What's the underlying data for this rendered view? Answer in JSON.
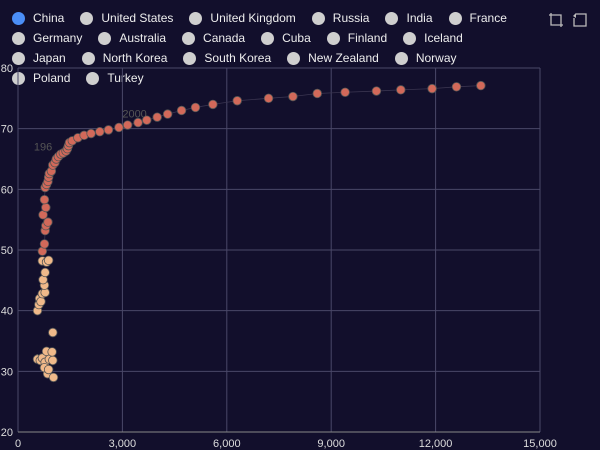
{
  "legend": {
    "active_color": "#4b8ef7",
    "inactive_color": "#cfcfcf",
    "items": [
      "China",
      "United States",
      "United Kingdom",
      "Russia",
      "India",
      "France",
      "Germany",
      "Australia",
      "Canada",
      "Cuba",
      "Finland",
      "Iceland",
      "Japan",
      "North Korea",
      "South Korea",
      "New Zealand",
      "Norway",
      "Poland",
      "Turkey"
    ]
  },
  "toolbox": [
    "zoom-icon",
    "restore-icon"
  ],
  "chart_data": {
    "type": "scatter",
    "xlim": [
      0,
      15000
    ],
    "ylim": [
      20,
      80
    ],
    "x_ticks": [
      0,
      3000,
      6000,
      9000,
      12000,
      15000
    ],
    "x_tick_labels": [
      "0",
      "3,000",
      "6,000",
      "9,000",
      "12,000",
      "15,000"
    ],
    "y_ticks": [
      20,
      30,
      40,
      50,
      60,
      70,
      80
    ],
    "y_tick_labels": [
      "20",
      "30",
      "40",
      "50",
      "60",
      "70",
      "80"
    ],
    "grid": true,
    "colors": {
      "light": "#f0b98a",
      "dark": "#d2695a",
      "stroke": "#555555",
      "grid": "#4a4868",
      "axis_text": "#dddddd",
      "annotation": "#555555"
    },
    "annotations": [
      {
        "text": "2000",
        "x": 3350,
        "y": 71.8
      },
      {
        "text": "196",
        "x": 720,
        "y": 66.4
      },
      {
        "text": "189",
        "x": 730,
        "y": 31.6
      }
    ],
    "series": [
      {
        "color": "light",
        "points": [
          [
            560,
            32
          ],
          [
            640,
            31.8
          ],
          [
            700,
            32.2
          ],
          [
            780,
            31.5
          ],
          [
            900,
            32
          ],
          [
            1000,
            31.8
          ],
          [
            820,
            33.3
          ],
          [
            980,
            33.2
          ],
          [
            850,
            29.6
          ],
          [
            1020,
            29
          ],
          [
            760,
            30.6
          ],
          [
            880,
            30.3
          ],
          [
            1000,
            36.4
          ],
          [
            560,
            40
          ],
          [
            600,
            41
          ],
          [
            620,
            42
          ],
          [
            660,
            41.5
          ],
          [
            700,
            42.8
          ],
          [
            780,
            43
          ],
          [
            760,
            44.2
          ],
          [
            720,
            45.1
          ],
          [
            780,
            46.3
          ],
          [
            700,
            48.2
          ],
          [
            820,
            48
          ],
          [
            880,
            48.3
          ]
        ]
      },
      {
        "color": "dark",
        "points": [
          [
            700,
            49.8
          ],
          [
            760,
            51
          ],
          [
            780,
            53.2
          ],
          [
            800,
            54
          ],
          [
            860,
            54.6
          ],
          [
            720,
            55.8
          ],
          [
            800,
            57
          ],
          [
            760,
            58.3
          ],
          [
            780,
            60.3
          ],
          [
            820,
            60.8
          ],
          [
            860,
            61.3
          ],
          [
            880,
            62
          ],
          [
            900,
            62.6
          ],
          [
            960,
            63
          ],
          [
            1000,
            64
          ],
          [
            1060,
            64.4
          ],
          [
            1100,
            65
          ],
          [
            1160,
            65.4
          ],
          [
            1230,
            65.8
          ],
          [
            1300,
            66
          ],
          [
            1380,
            66.3
          ],
          [
            1420,
            66.7
          ],
          [
            1450,
            67.2
          ],
          [
            1480,
            67.7
          ],
          [
            1560,
            68
          ],
          [
            1720,
            68.5
          ],
          [
            1900,
            68.9
          ],
          [
            2100,
            69.2
          ],
          [
            2350,
            69.5
          ],
          [
            2600,
            69.8
          ],
          [
            2900,
            70.2
          ],
          [
            3150,
            70.6
          ],
          [
            3450,
            71
          ],
          [
            3700,
            71.4
          ],
          [
            4000,
            71.9
          ],
          [
            4300,
            72.4
          ],
          [
            4700,
            73
          ],
          [
            5100,
            73.5
          ],
          [
            5600,
            74
          ],
          [
            6300,
            74.6
          ],
          [
            7200,
            75
          ],
          [
            7900,
            75.3
          ],
          [
            8600,
            75.8
          ],
          [
            9400,
            76
          ],
          [
            10300,
            76.2
          ],
          [
            11000,
            76.4
          ],
          [
            11900,
            76.6
          ],
          [
            12600,
            76.9
          ],
          [
            13300,
            77.1
          ]
        ]
      }
    ]
  }
}
